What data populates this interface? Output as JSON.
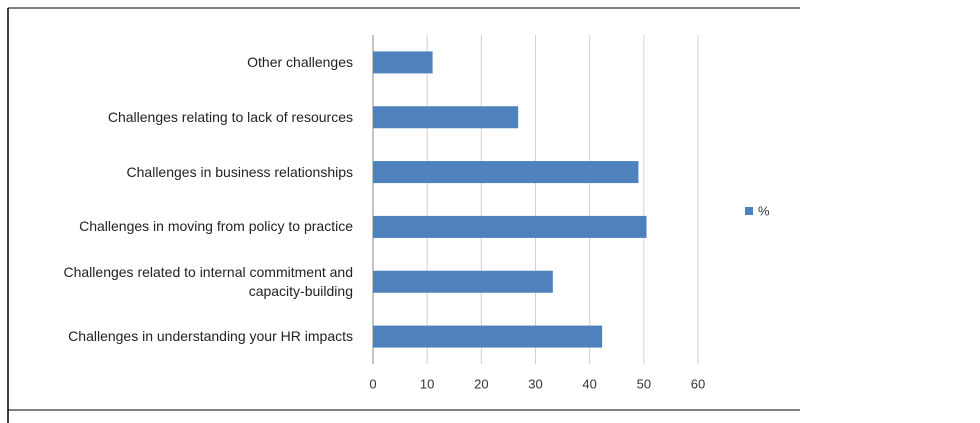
{
  "chart_data": {
    "type": "bar",
    "orientation": "horizontal",
    "categories": [
      "Other challenges",
      "Challenges relating to lack of resources",
      "Challenges in business relationships",
      "Challenges in moving from policy to practice",
      "Challenges related to internal commitment and capacity-building",
      "Challenges in understanding your HR impacts"
    ],
    "series": [
      {
        "name": "%",
        "color": "#4f81bd",
        "values": [
          11,
          26.8,
          49,
          50.5,
          33.2,
          42.3
        ]
      }
    ],
    "xlim": [
      0,
      60
    ],
    "xticks": [
      0,
      10,
      20,
      30,
      40,
      50,
      60
    ],
    "grid": true,
    "legend": "right"
  }
}
